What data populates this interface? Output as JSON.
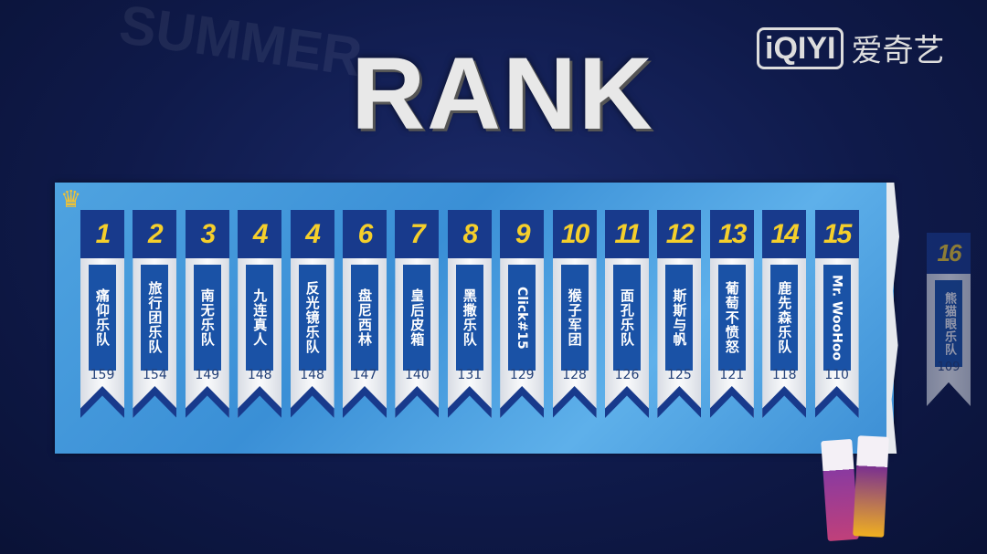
{
  "header": {
    "title": "RANK",
    "logo_mark": "iQIYI",
    "logo_cn": "爱奇艺"
  },
  "colors": {
    "header_blue": "#183a8c",
    "rank_yellow": "#f5cf2b",
    "panel_blue": "#4fa3e0",
    "background": "#0f1a4a"
  },
  "icons": {
    "crown": "crown-icon"
  },
  "ranking": [
    {
      "rank": "1",
      "name": "痛仰乐队",
      "score": "159"
    },
    {
      "rank": "2",
      "name": "旅行团乐队",
      "score": "154"
    },
    {
      "rank": "3",
      "name": "南无乐队",
      "score": "149"
    },
    {
      "rank": "4",
      "name": "九连真人",
      "score": "148"
    },
    {
      "rank": "4",
      "name": "反光镜乐队",
      "score": "148"
    },
    {
      "rank": "6",
      "name": "盘尼西林",
      "score": "147"
    },
    {
      "rank": "7",
      "name": "皇后皮箱",
      "score": "140"
    },
    {
      "rank": "8",
      "name": "黑撒乐队",
      "score": "131"
    },
    {
      "rank": "9",
      "name": "Click#15",
      "score": "129"
    },
    {
      "rank": "10",
      "name": "猴子军团",
      "score": "128"
    },
    {
      "rank": "11",
      "name": "面孔乐队",
      "score": "126"
    },
    {
      "rank": "12",
      "name": "斯斯与帆",
      "score": "125"
    },
    {
      "rank": "13",
      "name": "葡萄不愤怒",
      "score": "121"
    },
    {
      "rank": "14",
      "name": "鹿先森乐队",
      "score": "118"
    },
    {
      "rank": "15",
      "name": "Mr. WooHoo",
      "score": "110"
    }
  ],
  "eliminated": {
    "rank": "16",
    "name": "熊猫眼乐队",
    "score": "109"
  }
}
